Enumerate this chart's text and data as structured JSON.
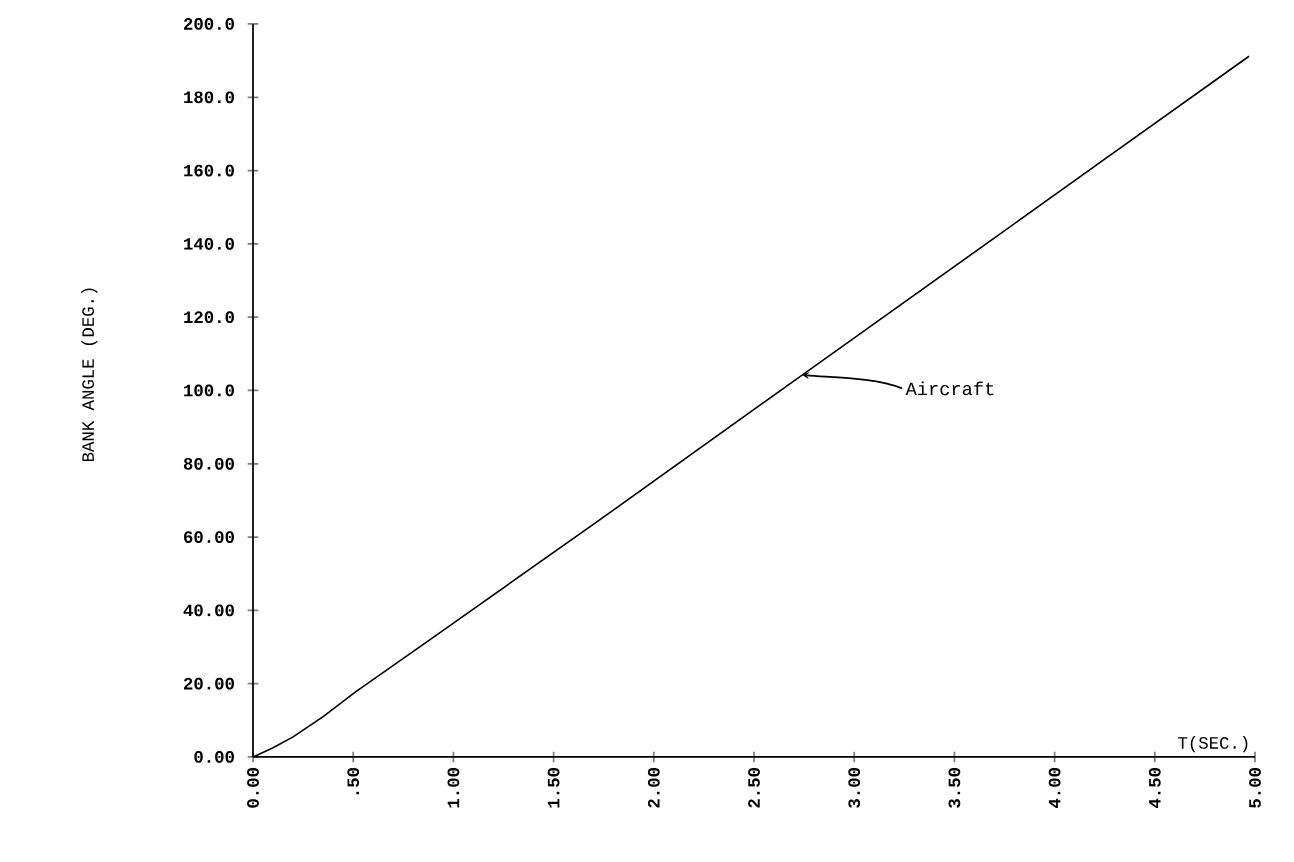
{
  "chart_data": {
    "type": "line",
    "xlabel": "T(SEC.)",
    "ylabel": "BANK ANGLE (DEG.)",
    "x": [
      0,
      0.1,
      0.2,
      0.35,
      0.51,
      0.88,
      1.73,
      2.74,
      3.73,
      4.25,
      4.97
    ],
    "values": [
      0,
      2.5,
      5.5,
      11,
      17.7,
      31.9,
      64.7,
      104.2,
      142.8,
      163.1,
      191.2
    ],
    "color": "#000000",
    "marker": "none",
    "line_style": "solid",
    "xlim": [
      0,
      5
    ],
    "ylim": [
      0,
      200
    ],
    "xticks": [
      {
        "value": 0,
        "label": "0.00"
      },
      {
        "value": 0.5,
        "label": ".50"
      },
      {
        "value": 1,
        "label": "1.00"
      },
      {
        "value": 1.5,
        "label": "1.50"
      },
      {
        "value": 2,
        "label": "2.00"
      },
      {
        "value": 2.5,
        "label": "2.50"
      },
      {
        "value": 3,
        "label": "3.00"
      },
      {
        "value": 3.5,
        "label": "3.50"
      },
      {
        "value": 4,
        "label": "4.00"
      },
      {
        "value": 4.5,
        "label": "4.50"
      },
      {
        "value": 5,
        "label": "5.00"
      }
    ],
    "yticks": [
      {
        "value": 0,
        "label": "0.00"
      },
      {
        "value": 20,
        "label": "20.00"
      },
      {
        "value": 40,
        "label": "40.00"
      },
      {
        "value": 60,
        "label": "60.00"
      },
      {
        "value": 80,
        "label": "80.00"
      },
      {
        "value": 100,
        "label": "100.0"
      },
      {
        "value": 120,
        "label": "120.0"
      },
      {
        "value": 140,
        "label": "140.0"
      },
      {
        "value": 160,
        "label": "160.0"
      },
      {
        "value": 180,
        "label": "180.0"
      },
      {
        "value": 200,
        "label": "200.0"
      }
    ],
    "annotations": [
      {
        "text": "Aircraft",
        "x": 2.74,
        "y": 104.2
      }
    ]
  }
}
